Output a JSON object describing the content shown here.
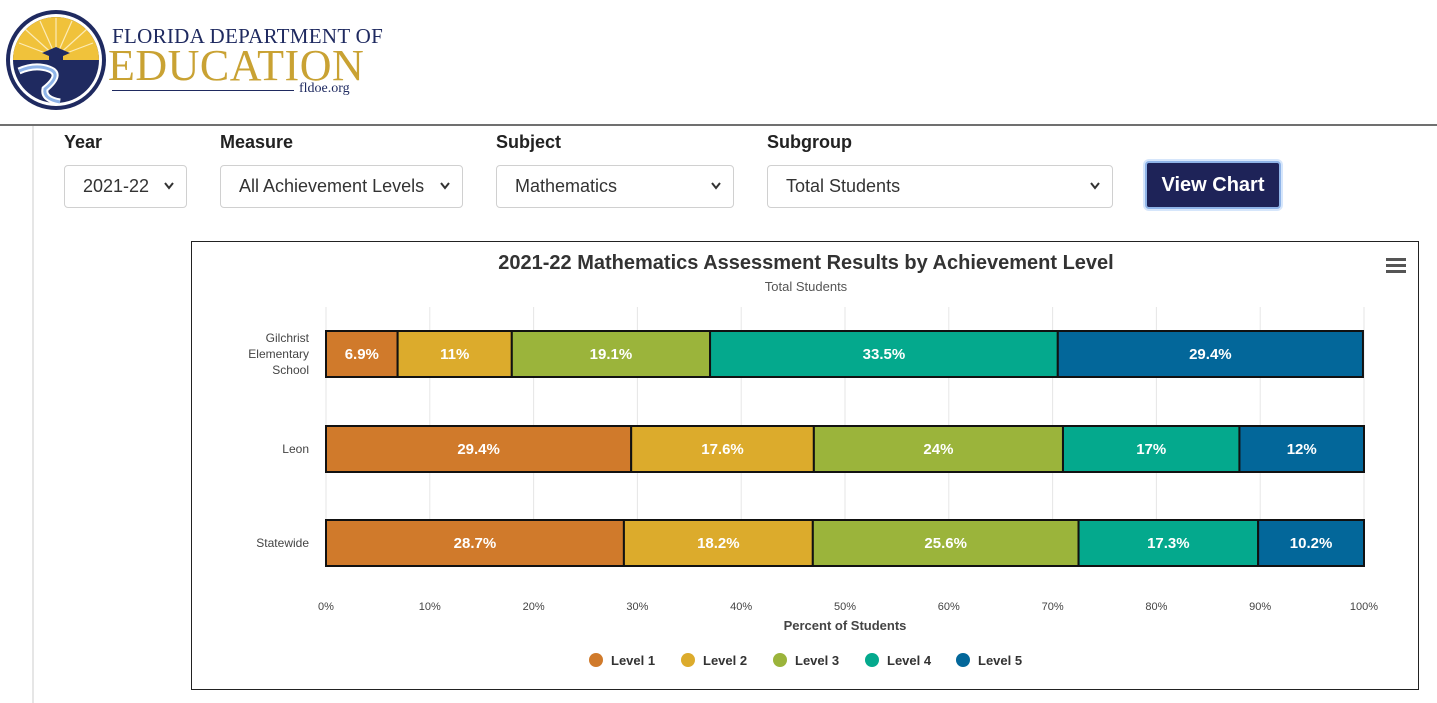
{
  "header": {
    "brand_line1": "FLORIDA DEPARTMENT OF",
    "brand_line2": "EDUCATION",
    "brand_url": "fldoe.org"
  },
  "filters": {
    "year": {
      "label": "Year",
      "value": "2021-22"
    },
    "measure": {
      "label": "Measure",
      "value": "All Achievement Levels"
    },
    "subject": {
      "label": "Subject",
      "value": "Mathematics"
    },
    "subgroup": {
      "label": "Subgroup",
      "value": "Total Students"
    },
    "view_button": "View Chart"
  },
  "colors": {
    "level1": "#d07a2b",
    "level2": "#dcab2c",
    "level3": "#9bb43b",
    "level4": "#04a98d",
    "level5": "#03679a"
  },
  "chart_data": {
    "type": "bar",
    "orientation": "horizontal",
    "stacked": true,
    "title": "2021-22 Mathematics Assessment Results by Achievement Level",
    "subtitle": "Total Students",
    "categories": [
      "Gilchrist Elementary School",
      "Leon",
      "Statewide"
    ],
    "series": [
      {
        "name": "Level 1",
        "values": [
          6.9,
          29.4,
          28.7
        ]
      },
      {
        "name": "Level 2",
        "values": [
          11,
          17.6,
          18.2
        ]
      },
      {
        "name": "Level 3",
        "values": [
          19.1,
          24,
          25.6
        ]
      },
      {
        "name": "Level 4",
        "values": [
          33.5,
          17,
          17.3
        ]
      },
      {
        "name": "Level 5",
        "values": [
          29.4,
          12,
          10.2
        ]
      }
    ],
    "xlabel": "Percent of Students",
    "xlim": [
      0,
      100
    ],
    "x_ticks": [
      "0%",
      "10%",
      "20%",
      "30%",
      "40%",
      "50%",
      "60%",
      "70%",
      "80%",
      "90%",
      "100%"
    ],
    "grid": true,
    "legend_position": "bottom-center",
    "menu_icon": "hamburger-menu-icon"
  }
}
